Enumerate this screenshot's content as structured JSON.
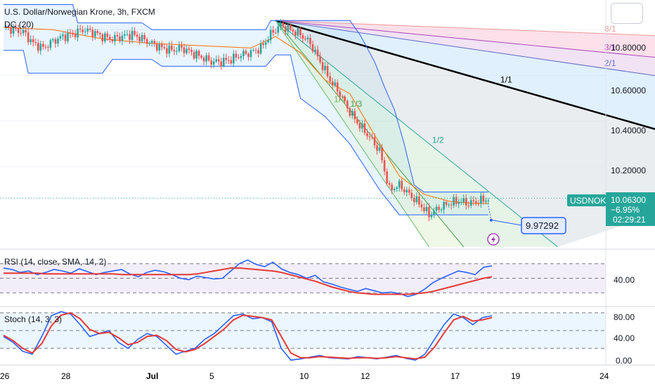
{
  "header": {
    "title": "U.S. Dollar/Norwegian Krone, 3h, FXCM",
    "indicator": "DC (20)"
  },
  "price_tag": {
    "symbol": "USDNOK",
    "price": "10.06300",
    "change": "−6.95%",
    "countdown": "02:29:21"
  },
  "callout": {
    "value": "9.97292"
  },
  "fan_labels": [
    "8/1",
    "3/1",
    "2/1",
    "1/1",
    "1/2",
    "1/3",
    "1/4"
  ],
  "rsi_panel": {
    "label": "RSI (14, close, SMA, 14, 2)",
    "tick": "40.00"
  },
  "stoch_panel": {
    "label": "Stoch (14, 3, 3)",
    "ticks": [
      "80.00",
      "40.00",
      "0.00"
    ]
  },
  "xaxis": {
    "labels": [
      "26",
      "28",
      "Jul",
      "5",
      "10",
      "12",
      "17",
      "19",
      "24"
    ]
  },
  "colors": {
    "up": "#26a69a",
    "down": "#ef5350",
    "channel": "#2962ff",
    "basis": "#ff6d00",
    "rsi": "#2962ff",
    "rsi_ma": "#e53935"
  },
  "chart_data": [
    {
      "type": "candlestick",
      "title": "U.S. Dollar/Norwegian Krone, 3h, FXCM",
      "y_ticks": [
        10.8,
        10.6,
        10.4,
        10.2
      ],
      "ylim": [
        9.84,
        10.93
      ],
      "close_path": [
        [
          0,
          10.81
        ],
        [
          4,
          10.8
        ],
        [
          8,
          10.79
        ],
        [
          12,
          10.74
        ],
        [
          16,
          10.72
        ],
        [
          20,
          10.75
        ],
        [
          24,
          10.77
        ],
        [
          28,
          10.78
        ],
        [
          32,
          10.8
        ],
        [
          36,
          10.79
        ],
        [
          40,
          10.77
        ],
        [
          44,
          10.76
        ],
        [
          48,
          10.77
        ],
        [
          52,
          10.78
        ],
        [
          56,
          10.76
        ],
        [
          60,
          10.74
        ],
        [
          64,
          10.72
        ],
        [
          68,
          10.71
        ],
        [
          72,
          10.72
        ],
        [
          76,
          10.7
        ],
        [
          80,
          10.68
        ],
        [
          84,
          10.66
        ],
        [
          88,
          10.66
        ],
        [
          92,
          10.67
        ],
        [
          96,
          10.69
        ],
        [
          100,
          10.7
        ],
        [
          104,
          10.72
        ],
        [
          108,
          10.78
        ],
        [
          112,
          10.82
        ],
        [
          116,
          10.8
        ],
        [
          120,
          10.78
        ],
        [
          124,
          10.74
        ],
        [
          128,
          10.66
        ],
        [
          132,
          10.58
        ],
        [
          136,
          10.52
        ],
        [
          140,
          10.44
        ],
        [
          144,
          10.38
        ],
        [
          148,
          10.33
        ],
        [
          152,
          10.27
        ],
        [
          156,
          10.1
        ],
        [
          160,
          10.12
        ],
        [
          164,
          10.08
        ],
        [
          168,
          10.04
        ],
        [
          172,
          9.99
        ],
        [
          176,
          10.02
        ],
        [
          180,
          10.04
        ],
        [
          184,
          10.05
        ],
        [
          188,
          10.04
        ],
        [
          192,
          10.05
        ],
        [
          196,
          10.06
        ]
      ],
      "donchian_upper_path": [
        [
          0,
          10.91
        ],
        [
          28,
          10.91
        ],
        [
          30,
          10.83
        ],
        [
          56,
          10.83
        ],
        [
          60,
          10.8
        ],
        [
          106,
          10.8
        ],
        [
          108,
          10.84
        ],
        [
          140,
          10.84
        ],
        [
          144,
          10.78
        ],
        [
          150,
          10.66
        ],
        [
          154,
          10.55
        ],
        [
          158,
          10.45
        ],
        [
          162,
          10.3
        ],
        [
          166,
          10.12
        ],
        [
          170,
          10.09
        ],
        [
          186,
          10.09
        ],
        [
          196,
          10.09
        ]
      ],
      "donchian_lower_path": [
        [
          0,
          10.71
        ],
        [
          8,
          10.71
        ],
        [
          10,
          10.61
        ],
        [
          40,
          10.61
        ],
        [
          44,
          10.67
        ],
        [
          60,
          10.67
        ],
        [
          64,
          10.64
        ],
        [
          106,
          10.64
        ],
        [
          110,
          10.69
        ],
        [
          116,
          10.69
        ],
        [
          120,
          10.5
        ],
        [
          130,
          10.42
        ],
        [
          140,
          10.3
        ],
        [
          152,
          10.1
        ],
        [
          160,
          9.99
        ],
        [
          196,
          9.99
        ]
      ],
      "donchian_basis_path": [
        [
          0,
          10.81
        ],
        [
          20,
          10.8
        ],
        [
          40,
          10.76
        ],
        [
          60,
          10.74
        ],
        [
          80,
          10.73
        ],
        [
          100,
          10.72
        ],
        [
          110,
          10.77
        ],
        [
          120,
          10.7
        ],
        [
          130,
          10.58
        ],
        [
          140,
          10.52
        ],
        [
          150,
          10.34
        ],
        [
          160,
          10.16
        ],
        [
          170,
          10.08
        ],
        [
          180,
          10.05
        ],
        [
          190,
          10.04
        ],
        [
          196,
          10.04
        ]
      ],
      "gann_origin": [
        110,
        10.84
      ],
      "gann_angle_ends": [
        {
          "label": "8/1",
          "end": [
            320,
            10.75
          ]
        },
        {
          "label": "3/1",
          "end": [
            320,
            10.62
          ]
        },
        {
          "label": "2/1",
          "end": [
            320,
            10.51
          ]
        },
        {
          "label": "1/1",
          "end": [
            320,
            10.19
          ]
        },
        {
          "label": "1/2",
          "end": [
            224,
            9.85
          ]
        },
        {
          "label": "1/3",
          "end": [
            186,
            9.85
          ]
        },
        {
          "label": "1/4",
          "end": [
            172,
            9.85
          ]
        }
      ],
      "current_price": 10.063,
      "projection_target": 9.97292
    },
    {
      "type": "line",
      "title": "RSI (14, close, SMA, 14, 2)",
      "y_ticks": [
        40
      ],
      "hlines": [
        70,
        50,
        30
      ],
      "ylim": [
        12,
        88
      ],
      "series": [
        {
          "values": [
            64,
            62,
            58,
            60,
            55,
            58,
            62,
            60,
            57,
            63,
            59,
            55,
            58,
            60,
            62,
            56,
            52,
            58,
            61,
            59,
            55,
            50,
            48,
            53,
            51,
            49,
            50,
            60,
            70,
            75,
            69,
            66,
            72,
            63,
            58,
            55,
            50,
            54,
            45,
            42,
            38,
            35,
            32,
            36,
            33,
            30,
            31,
            29,
            25,
            28,
            35,
            44,
            50,
            55,
            60,
            58,
            55,
            65,
            67
          ]
        },
        {
          "values": [
            57,
            57,
            57,
            57,
            57,
            56,
            56,
            56,
            56,
            56,
            56,
            56,
            56,
            56,
            55,
            55,
            55,
            55,
            55,
            55,
            55,
            55,
            55,
            56,
            58,
            60,
            62,
            64,
            64,
            63,
            62,
            61,
            60,
            58,
            55,
            52,
            49,
            46,
            42,
            38,
            35,
            32,
            30,
            29,
            28,
            28,
            28,
            28,
            28,
            29,
            30,
            32,
            35,
            38,
            41,
            44,
            47,
            50,
            52
          ]
        }
      ]
    },
    {
      "type": "line",
      "title": "Stoch (14, 3, 3)",
      "y_ticks": [
        80,
        40,
        0
      ],
      "hlines": [
        80,
        50,
        20
      ],
      "ylim": [
        -7,
        88
      ],
      "series": [
        {
          "values": [
            40,
            30,
            15,
            10,
            40,
            75,
            82,
            78,
            60,
            40,
            45,
            50,
            30,
            20,
            35,
            45,
            40,
            25,
            10,
            15,
            20,
            35,
            45,
            60,
            75,
            78,
            70,
            72,
            65,
            20,
            0,
            2,
            5,
            8,
            4,
            3,
            2,
            6,
            4,
            2,
            5,
            8,
            3,
            0,
            10,
            35,
            60,
            78,
            72,
            60,
            72,
            75
          ]
        },
        {
          "values": [
            42,
            33,
            20,
            12,
            28,
            58,
            76,
            80,
            70,
            52,
            45,
            47,
            38,
            26,
            30,
            40,
            42,
            33,
            18,
            14,
            18,
            28,
            40,
            52,
            68,
            76,
            74,
            72,
            68,
            40,
            12,
            4,
            4,
            6,
            5,
            4,
            3,
            4,
            4,
            3,
            4,
            6,
            4,
            2,
            5,
            22,
            46,
            68,
            74,
            66,
            68,
            72
          ]
        }
      ]
    }
  ]
}
